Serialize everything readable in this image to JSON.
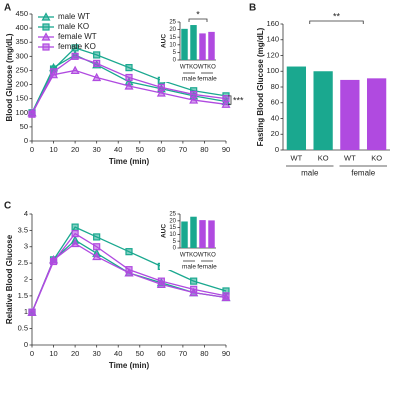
{
  "chart_data": [
    {
      "type": "line",
      "panel": "A",
      "xlabel": "Time (min)",
      "ylabel": "Blood Glucose (mg/dL)",
      "x": [
        0,
        10,
        20,
        30,
        45,
        60,
        75,
        90
      ],
      "xlim": [
        0,
        90
      ],
      "xticks": [
        0,
        10,
        20,
        30,
        40,
        50,
        60,
        70,
        80,
        90
      ],
      "ylim": [
        0,
        450
      ],
      "yticks": [
        0,
        50,
        100,
        150,
        200,
        250,
        300,
        350,
        400,
        450
      ],
      "legend": "upper left",
      "annotation": "***",
      "series": [
        {
          "name": "male WT",
          "color": "#1aa88f",
          "marker": "triangle",
          "values": [
            100,
            260,
            305,
            270,
            210,
            185,
            160,
            140
          ]
        },
        {
          "name": "male KO",
          "color": "#1aa88f",
          "marker": "square",
          "values": [
            100,
            255,
            330,
            305,
            260,
            215,
            178,
            160
          ]
        },
        {
          "name": "female WT",
          "color": "#b04ae0",
          "marker": "triangle",
          "values": [
            100,
            235,
            250,
            225,
            195,
            170,
            145,
            130
          ]
        },
        {
          "name": "female KO",
          "color": "#b04ae0",
          "marker": "square",
          "values": [
            95,
            245,
            300,
            275,
            225,
            190,
            165,
            150
          ]
        }
      ]
    },
    {
      "type": "bar",
      "ylabel": "AUC",
      "categories": [
        "WT",
        "KO",
        "WT",
        "KO"
      ],
      "groups": [
        "male",
        "female"
      ],
      "values": [
        20.5,
        23,
        17.5,
        18.5
      ],
      "colors": [
        "#1aa88f",
        "#1aa88f",
        "#b04ae0",
        "#b04ae0"
      ],
      "ylim": [
        0,
        25
      ],
      "yticks": [
        0,
        5,
        10,
        15,
        20,
        25
      ],
      "annotation": "*"
    },
    {
      "type": "bar",
      "panel": "B",
      "ylabel": "Fasting Blood Glucose (mg/dL)",
      "categories": [
        "WT",
        "KO",
        "WT",
        "KO"
      ],
      "groups": [
        "male",
        "female"
      ],
      "values": [
        106,
        100,
        89,
        91
      ],
      "colors": [
        "#1aa88f",
        "#1aa88f",
        "#b04ae0",
        "#b04ae0"
      ],
      "ylim": [
        0,
        160
      ],
      "yticks": [
        0,
        20,
        40,
        60,
        80,
        100,
        120,
        140,
        160
      ],
      "annotation": "**"
    },
    {
      "type": "line",
      "panel": "C",
      "xlabel": "Time (min)",
      "ylabel": "Relative Blood Glucose",
      "x": [
        0,
        10,
        20,
        30,
        45,
        60,
        75,
        90
      ],
      "xlim": [
        0,
        90
      ],
      "xticks": [
        0,
        10,
        20,
        30,
        40,
        50,
        60,
        70,
        80,
        90
      ],
      "ylim": [
        0,
        4
      ],
      "yticks": [
        0,
        0.5,
        1,
        1.5,
        2,
        2.5,
        3,
        3.5,
        4
      ],
      "series": [
        {
          "name": "male WT",
          "color": "#1aa88f",
          "marker": "triangle",
          "values": [
            1,
            2.6,
            3.2,
            2.8,
            2.2,
            1.9,
            1.6,
            1.45
          ]
        },
        {
          "name": "male KO",
          "color": "#1aa88f",
          "marker": "square",
          "values": [
            1,
            2.6,
            3.6,
            3.3,
            2.85,
            2.4,
            1.95,
            1.65
          ]
        },
        {
          "name": "female WT",
          "color": "#b04ae0",
          "marker": "triangle",
          "values": [
            1,
            2.6,
            3.1,
            2.7,
            2.2,
            1.85,
            1.6,
            1.45
          ]
        },
        {
          "name": "female KO",
          "color": "#b04ae0",
          "marker": "square",
          "values": [
            1,
            2.55,
            3.4,
            3.0,
            2.3,
            1.95,
            1.7,
            1.5
          ]
        }
      ]
    },
    {
      "type": "bar",
      "ylabel": "AUC",
      "categories": [
        "WT",
        "KO",
        "WT",
        "KO"
      ],
      "groups": [
        "male",
        "female"
      ],
      "values": [
        19.5,
        23,
        20.5,
        20.3
      ],
      "colors": [
        "#1aa88f",
        "#1aa88f",
        "#b04ae0",
        "#b04ae0"
      ],
      "ylim": [
        0,
        25
      ],
      "yticks": [
        0,
        5,
        10,
        15,
        20,
        25
      ]
    }
  ]
}
